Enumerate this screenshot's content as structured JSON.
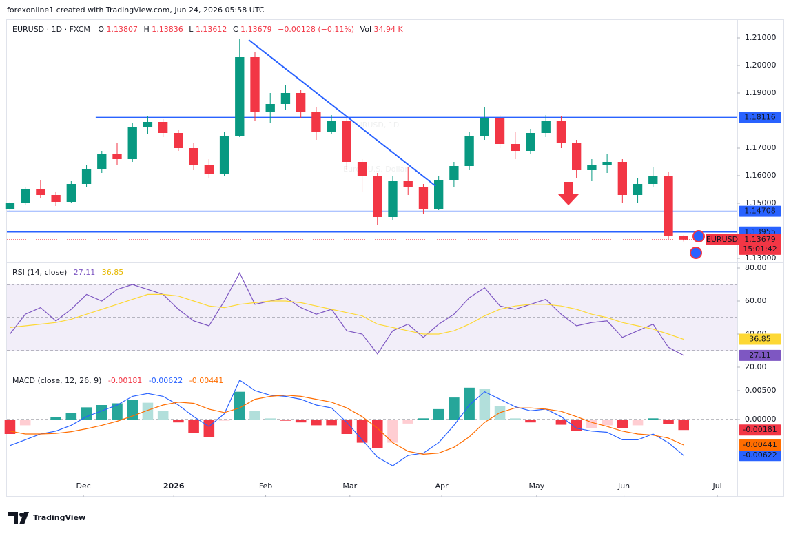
{
  "header_text": "forexonline1 created with TradingView.com, Jun 24, 2026 05:58 UTC",
  "footer_logo": "TradingView",
  "legend": {
    "symbol": "EURUSD · 1D · FXCM",
    "o": "O",
    "h": "H",
    "l": "L",
    "c": "C",
    "change": "−0.00128 (−0.11%)",
    "vol_label": "Vol",
    "vol": "34.94 K"
  },
  "chart_data": [
    {
      "type": "candlestick",
      "title": "EURUSD, 1D",
      "subtitle": "Euro / U.S. Dollar",
      "up_color": "#089981",
      "down_color": "#f23645",
      "xlim": [
        -0.2,
        47.5
      ],
      "ylim": [
        1.12875,
        1.21625
      ],
      "yticks": [
        {
          "value": 1.21,
          "label": "1.21000"
        },
        {
          "value": 1.2,
          "label": "1.20000"
        },
        {
          "value": 1.19,
          "label": "1.19000"
        },
        {
          "value": 1.17,
          "label": "1.17000"
        },
        {
          "value": 1.16,
          "label": "1.16000"
        },
        {
          "value": 1.15,
          "label": "1.15000"
        },
        {
          "value": 1.13,
          "label": "1.13000"
        }
      ],
      "candles": [
        [
          1.148,
          1.1505,
          1.147,
          1.15
        ],
        [
          1.15,
          1.156,
          1.1495,
          1.155
        ],
        [
          1.155,
          1.1585,
          1.152,
          1.153
        ],
        [
          1.153,
          1.154,
          1.149,
          1.1505
        ],
        [
          1.1505,
          1.158,
          1.15,
          1.157
        ],
        [
          1.157,
          1.164,
          1.156,
          1.1625
        ],
        [
          1.1625,
          1.169,
          1.161,
          1.168
        ],
        [
          1.168,
          1.172,
          1.164,
          1.166
        ],
        [
          1.166,
          1.179,
          1.165,
          1.1775
        ],
        [
          1.1775,
          1.1815,
          1.175,
          1.1795
        ],
        [
          1.1795,
          1.1805,
          1.174,
          1.1755
        ],
        [
          1.1755,
          1.1765,
          1.169,
          1.17
        ],
        [
          1.17,
          1.172,
          1.162,
          1.164
        ],
        [
          1.164,
          1.166,
          1.159,
          1.1605
        ],
        [
          1.1605,
          1.176,
          1.16,
          1.1745
        ],
        [
          1.1745,
          1.2095,
          1.174,
          1.203
        ],
        [
          1.203,
          1.205,
          1.18,
          1.183
        ],
        [
          1.183,
          1.19,
          1.179,
          1.186
        ],
        [
          1.186,
          1.193,
          1.184,
          1.19
        ],
        [
          1.19,
          1.191,
          1.181,
          1.183
        ],
        [
          1.183,
          1.185,
          1.173,
          1.176
        ],
        [
          1.176,
          1.182,
          1.175,
          1.18
        ],
        [
          1.18,
          1.181,
          1.162,
          1.165
        ],
        [
          1.165,
          1.166,
          1.154,
          1.16
        ],
        [
          1.16,
          1.161,
          1.142,
          1.145
        ],
        [
          1.145,
          1.16,
          1.144,
          1.158
        ],
        [
          1.158,
          1.163,
          1.153,
          1.156
        ],
        [
          1.156,
          1.157,
          1.146,
          1.148
        ],
        [
          1.148,
          1.16,
          1.1475,
          1.1585
        ],
        [
          1.1585,
          1.165,
          1.156,
          1.1635
        ],
        [
          1.1635,
          1.176,
          1.162,
          1.1745
        ],
        [
          1.1745,
          1.185,
          1.173,
          1.181
        ],
        [
          1.181,
          1.182,
          1.17,
          1.1715
        ],
        [
          1.1715,
          1.176,
          1.166,
          1.169
        ],
        [
          1.169,
          1.177,
          1.168,
          1.1755
        ],
        [
          1.1755,
          1.182,
          1.174,
          1.18
        ],
        [
          1.18,
          1.1815,
          1.17,
          1.172
        ],
        [
          1.172,
          1.173,
          1.159,
          1.162
        ],
        [
          1.162,
          1.166,
          1.158,
          1.164
        ],
        [
          1.164,
          1.168,
          1.161,
          1.165
        ],
        [
          1.165,
          1.166,
          1.15,
          1.153
        ],
        [
          1.153,
          1.159,
          1.15,
          1.157
        ],
        [
          1.157,
          1.163,
          1.156,
          1.16
        ],
        [
          1.16,
          1.1615,
          1.137,
          1.13807
        ],
        [
          1.13807,
          1.13836,
          1.13612,
          1.13679
        ]
      ],
      "trendlines": [
        {
          "x": [
            15.6,
            27.8
          ],
          "y": [
            1.20925,
            1.15625
          ],
          "color": "#2962ff"
        }
      ],
      "levels": [
        {
          "value": 1.18116,
          "x_start": 5.6
        },
        {
          "value": 1.14708
        },
        {
          "value": 1.13955
        }
      ],
      "level_color": "#2962ff",
      "symbol_tag": "EURUSD",
      "countdown": "15:01:42"
    },
    {
      "type": "line",
      "title": "RSI (14, close)",
      "xlim": [
        -0.2,
        47.5
      ],
      "ylim": [
        17.08,
        82.5
      ],
      "yticks": [
        {
          "value": 80,
          "label": "80.00"
        },
        {
          "value": 60,
          "label": "60.00"
        },
        {
          "value": 40,
          "label": "40.00"
        },
        {
          "value": 20,
          "label": "20.00"
        }
      ],
      "bands": [
        70,
        50,
        30
      ],
      "series": [
        {
          "name": "RSI",
          "color": "#7e57c2",
          "values": [
            40,
            52,
            56,
            48,
            55,
            64,
            60,
            67,
            70,
            67,
            64,
            55,
            48,
            45,
            60,
            77,
            58,
            60,
            62,
            56,
            52,
            55,
            42,
            40,
            28,
            42,
            46,
            38,
            46,
            52,
            62,
            68,
            57,
            55,
            58,
            61,
            52,
            45,
            47,
            48,
            38,
            42,
            46,
            32,
            27.11
          ]
        },
        {
          "name": "RSI-based MA",
          "color": "#fdd835",
          "values": [
            44,
            45,
            46,
            47,
            49,
            52,
            55,
            58,
            61,
            64,
            64,
            63,
            60,
            57,
            56,
            58,
            59,
            60,
            60,
            59,
            57,
            55,
            53,
            51,
            46,
            44,
            42,
            40,
            40,
            42,
            46,
            51,
            55,
            57,
            58,
            58,
            57,
            55,
            52,
            50,
            47,
            45,
            43,
            40,
            36.85
          ]
        }
      ]
    },
    {
      "type": "macd",
      "title": "MACD (close, 12, 26, 9)",
      "xlim": [
        -0.2,
        47.5
      ],
      "ylim": [
        -0.01298,
        0.00786
      ],
      "yticks": [
        {
          "value": 0.005,
          "label": "0.00500"
        },
        {
          "value": 0,
          "label": "0.00000"
        }
      ],
      "xticks": [
        {
          "value": 4.8,
          "label": "Dec"
        },
        {
          "value": 10.7,
          "label": "2026"
        },
        {
          "value": 16.7,
          "label": "Feb"
        },
        {
          "value": 22.2,
          "label": "Mar"
        },
        {
          "value": 28.2,
          "label": "Apr"
        },
        {
          "value": 34.4,
          "label": "May"
        },
        {
          "value": 40.1,
          "label": "Jun"
        },
        {
          "value": 46.2,
          "label": "Jul"
        }
      ],
      "series": [
        {
          "name": "Histogram",
          "color": "#f23645",
          "values": [
            -0.0025,
            -0.001,
            0.0,
            0.0004,
            0.0011,
            0.0021,
            0.0025,
            0.0028,
            0.0034,
            0.0029,
            0.0015,
            -0.0005,
            -0.0023,
            -0.003,
            -0.0002,
            0.0048,
            0.0015,
            0.0002,
            -0.0002,
            -0.0005,
            -0.001,
            -0.001,
            -0.0025,
            -0.004,
            -0.005,
            -0.004,
            -0.0007,
            0.0002,
            0.0018,
            0.0038,
            0.0055,
            0.0053,
            0.0023,
            0.0002,
            -0.0005,
            0.0,
            -0.0009,
            -0.002,
            -0.0015,
            -0.001,
            -0.0015,
            -0.001,
            0.0002,
            -0.0008,
            -0.00181
          ]
        },
        {
          "name": "MACD",
          "color": "#2962ff",
          "values": [
            -0.0045,
            -0.0035,
            -0.0025,
            -0.002,
            -0.001,
            0.0005,
            0.0015,
            0.0025,
            0.004,
            0.0045,
            0.004,
            0.0025,
            0.0005,
            -0.0012,
            0.001,
            0.0068,
            0.005,
            0.0042,
            0.004,
            0.0035,
            0.0025,
            0.002,
            -0.0005,
            -0.0035,
            -0.0065,
            -0.008,
            -0.0062,
            -0.0058,
            -0.004,
            -0.001,
            0.0025,
            0.0048,
            0.0035,
            0.0022,
            0.0015,
            0.0018,
            0.0005,
            -0.0015,
            -0.002,
            -0.0022,
            -0.0035,
            -0.0035,
            -0.0025,
            -0.004,
            -0.00622
          ]
        },
        {
          "name": "Signal",
          "color": "#ff6d00",
          "values": [
            -0.002,
            -0.0025,
            -0.0025,
            -0.0024,
            -0.0021,
            -0.0016,
            -0.001,
            -0.0003,
            0.0006,
            0.0016,
            0.0025,
            0.003,
            0.0028,
            0.0018,
            0.0012,
            0.002,
            0.0035,
            0.004,
            0.0042,
            0.004,
            0.0035,
            0.003,
            0.002,
            0.0005,
            -0.0015,
            -0.004,
            -0.0055,
            -0.006,
            -0.0058,
            -0.0048,
            -0.003,
            -0.0005,
            0.0012,
            0.002,
            0.002,
            0.0018,
            0.0014,
            0.0005,
            -0.0005,
            -0.0012,
            -0.002,
            -0.0025,
            -0.0027,
            -0.0032,
            -0.00441
          ]
        }
      ]
    }
  ]
}
